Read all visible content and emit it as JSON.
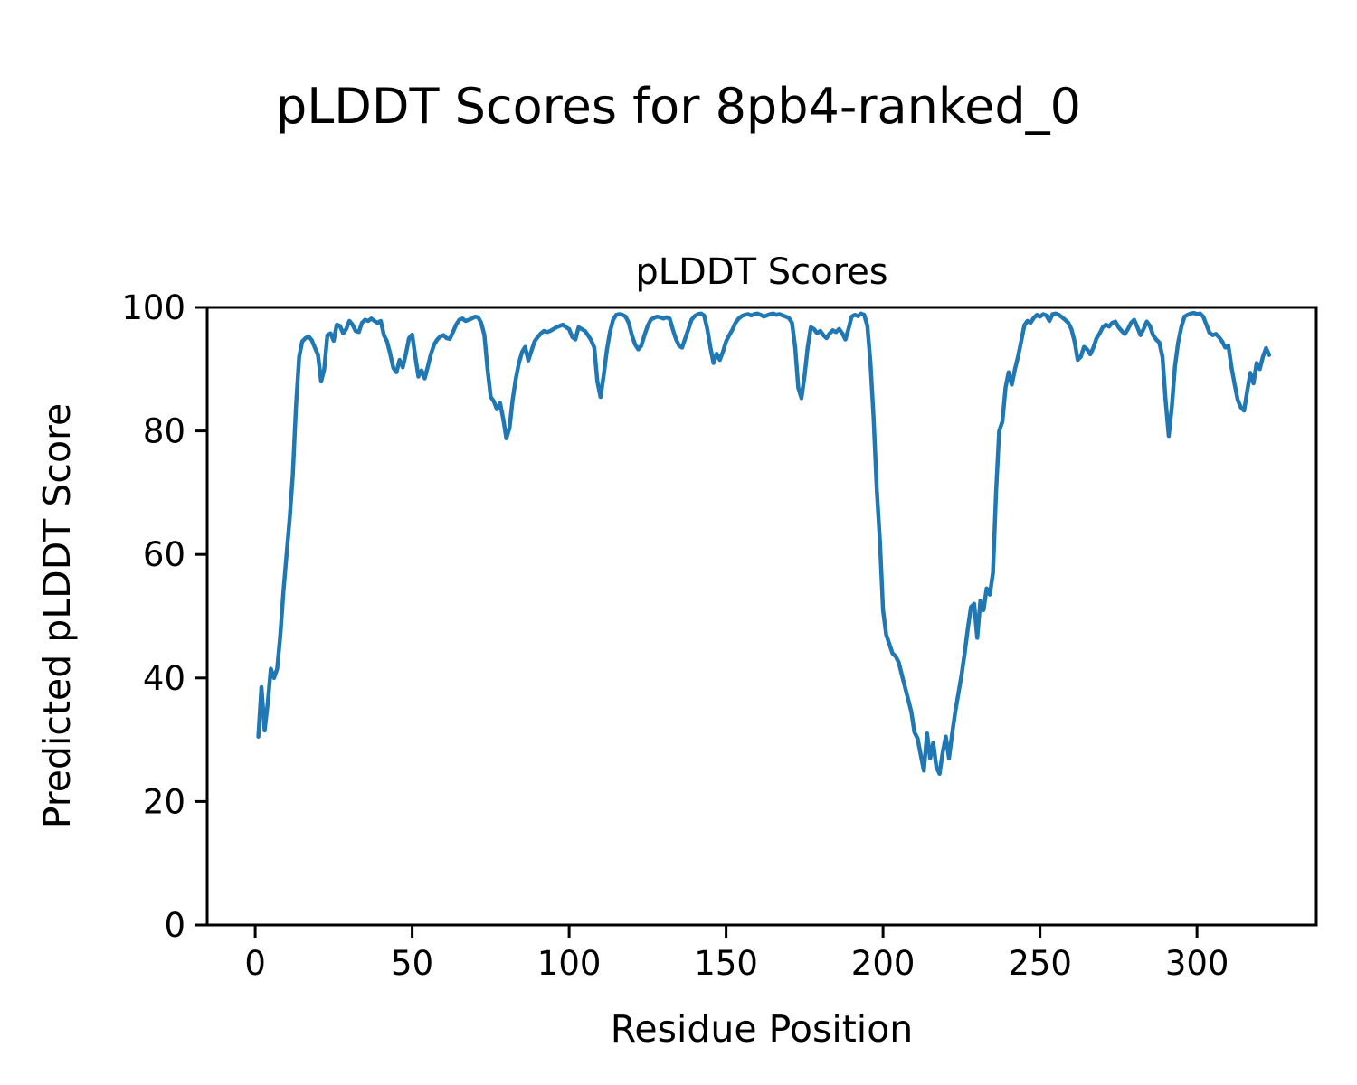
{
  "figure": {
    "suptitle": "pLDDT Scores for 8pb4-ranked_0",
    "background": "#ffffff"
  },
  "chart_data": {
    "type": "line",
    "title": "pLDDT Scores",
    "xlabel": "Residue Position",
    "ylabel": "Predicted pLDDT Score",
    "xlim": [
      -15.3,
      338
    ],
    "ylim": [
      0,
      100
    ],
    "xticks": [
      0,
      50,
      100,
      150,
      200,
      250,
      300
    ],
    "yticks": [
      0,
      20,
      40,
      60,
      80,
      100
    ],
    "grid": false,
    "legend": null,
    "line_color": "#1f77b4",
    "line_width": 4.5,
    "series": [
      {
        "name": "pLDDT",
        "points": [
          [
            1,
            30.5
          ],
          [
            2,
            38.5
          ],
          [
            3,
            31.5
          ],
          [
            4,
            36
          ],
          [
            5,
            41.5
          ],
          [
            6,
            40
          ],
          [
            7,
            41.5
          ],
          [
            8,
            47
          ],
          [
            9,
            54
          ],
          [
            10,
            60
          ],
          [
            11,
            66
          ],
          [
            12,
            73
          ],
          [
            13,
            84
          ],
          [
            14,
            92
          ],
          [
            15,
            94.5
          ],
          [
            16,
            95
          ],
          [
            17,
            95.3
          ],
          [
            18,
            94.7
          ],
          [
            19,
            93.5
          ],
          [
            20,
            92.3
          ],
          [
            21,
            88
          ],
          [
            22,
            90
          ],
          [
            23,
            95.5
          ],
          [
            24,
            95.8
          ],
          [
            25,
            94.6
          ],
          [
            26,
            97.2
          ],
          [
            27,
            97
          ],
          [
            28,
            95.8
          ],
          [
            29,
            96.5
          ],
          [
            30,
            97.8
          ],
          [
            31,
            97.2
          ],
          [
            32,
            96.2
          ],
          [
            33,
            96
          ],
          [
            34,
            97.5
          ],
          [
            35,
            98
          ],
          [
            36,
            97.8
          ],
          [
            37,
            98.2
          ],
          [
            38,
            97.8
          ],
          [
            39,
            97.5
          ],
          [
            40,
            97.8
          ],
          [
            41,
            95.5
          ],
          [
            42,
            94.5
          ],
          [
            43,
            92.5
          ],
          [
            44,
            90.2
          ],
          [
            45,
            89.5
          ],
          [
            46,
            91.5
          ],
          [
            47,
            90.3
          ],
          [
            48,
            92.5
          ],
          [
            49,
            95
          ],
          [
            50,
            95.6
          ],
          [
            51,
            92
          ],
          [
            52,
            88.8
          ],
          [
            53,
            89.8
          ],
          [
            54,
            88.5
          ],
          [
            55,
            90.5
          ],
          [
            56,
            92.5
          ],
          [
            57,
            94
          ],
          [
            58,
            94.8
          ],
          [
            59,
            95.3
          ],
          [
            60,
            95.5
          ],
          [
            61,
            95
          ],
          [
            62,
            94.9
          ],
          [
            63,
            96
          ],
          [
            64,
            97.2
          ],
          [
            65,
            98
          ],
          [
            66,
            98.2
          ],
          [
            67,
            97.8
          ],
          [
            68,
            98
          ],
          [
            69,
            98.2
          ],
          [
            70,
            98.5
          ],
          [
            71,
            98.4
          ],
          [
            72,
            97.5
          ],
          [
            73,
            95.5
          ],
          [
            74,
            90
          ],
          [
            75,
            85.5
          ],
          [
            76,
            84.8
          ],
          [
            77,
            83.5
          ],
          [
            78,
            84.5
          ],
          [
            79,
            82
          ],
          [
            80,
            78.8
          ],
          [
            81,
            80.5
          ],
          [
            82,
            85
          ],
          [
            83,
            88.4
          ],
          [
            84,
            91
          ],
          [
            85,
            92.8
          ],
          [
            86,
            93.6
          ],
          [
            87,
            91.4
          ],
          [
            88,
            93
          ],
          [
            89,
            94.5
          ],
          [
            90,
            95.2
          ],
          [
            91,
            95.8
          ],
          [
            92,
            96.2
          ],
          [
            93,
            96
          ],
          [
            94,
            96.2
          ],
          [
            95,
            96.5
          ],
          [
            96,
            96.8
          ],
          [
            97,
            97
          ],
          [
            98,
            97.2
          ],
          [
            99,
            96.8
          ],
          [
            100,
            96.5
          ],
          [
            101,
            95.2
          ],
          [
            102,
            94.8
          ],
          [
            103,
            96.8
          ],
          [
            104,
            96.5
          ],
          [
            105,
            96.2
          ],
          [
            106,
            95.5
          ],
          [
            107,
            94.7
          ],
          [
            108,
            93.5
          ],
          [
            109,
            88
          ],
          [
            110,
            85.5
          ],
          [
            111,
            89
          ],
          [
            112,
            93
          ],
          [
            113,
            96
          ],
          [
            114,
            98
          ],
          [
            115,
            98.8
          ],
          [
            116,
            98.9
          ],
          [
            117,
            98.8
          ],
          [
            118,
            98.5
          ],
          [
            119,
            97.5
          ],
          [
            120,
            95.5
          ],
          [
            121,
            94
          ],
          [
            122,
            93.2
          ],
          [
            123,
            93.8
          ],
          [
            124,
            95.5
          ],
          [
            125,
            97
          ],
          [
            126,
            98
          ],
          [
            127,
            98.3
          ],
          [
            128,
            98.5
          ],
          [
            129,
            98.4
          ],
          [
            130,
            98.2
          ],
          [
            131,
            98.4
          ],
          [
            132,
            98.2
          ],
          [
            133,
            96.5
          ],
          [
            134,
            94.9
          ],
          [
            135,
            93.8
          ],
          [
            136,
            93.5
          ],
          [
            137,
            95
          ],
          [
            138,
            96.5
          ],
          [
            139,
            98
          ],
          [
            140,
            98.6
          ],
          [
            141,
            98.9
          ],
          [
            142,
            99
          ],
          [
            143,
            98.7
          ],
          [
            144,
            96.5
          ],
          [
            145,
            93.5
          ],
          [
            146,
            91
          ],
          [
            147,
            92.5
          ],
          [
            148,
            91.5
          ],
          [
            149,
            92.8
          ],
          [
            150,
            94.5
          ],
          [
            151,
            95.5
          ],
          [
            152,
            96.4
          ],
          [
            153,
            97.5
          ],
          [
            154,
            98.2
          ],
          [
            155,
            98.6
          ],
          [
            156,
            98.8
          ],
          [
            157,
            98.9
          ],
          [
            158,
            98.7
          ],
          [
            159,
            98.9
          ],
          [
            160,
            99
          ],
          [
            161,
            98.8
          ],
          [
            162,
            98.5
          ],
          [
            163,
            98.7
          ],
          [
            164,
            98.9
          ],
          [
            165,
            99
          ],
          [
            166,
            98.8
          ],
          [
            167,
            98.9
          ],
          [
            168,
            98.7
          ],
          [
            169,
            98.5
          ],
          [
            170,
            98.3
          ],
          [
            171,
            97.5
          ],
          [
            172,
            93.5
          ],
          [
            173,
            87
          ],
          [
            174,
            85.3
          ],
          [
            175,
            89
          ],
          [
            176,
            93.5
          ],
          [
            177,
            96.8
          ],
          [
            178,
            96.5
          ],
          [
            179,
            95.8
          ],
          [
            180,
            96.2
          ],
          [
            181,
            95.5
          ],
          [
            182,
            95
          ],
          [
            183,
            95.8
          ],
          [
            184,
            96.3
          ],
          [
            185,
            96
          ],
          [
            186,
            96.5
          ],
          [
            187,
            95.8
          ],
          [
            188,
            94.8
          ],
          [
            189,
            96.5
          ],
          [
            190,
            98.5
          ],
          [
            191,
            98.8
          ],
          [
            192,
            98.6
          ],
          [
            193,
            99
          ],
          [
            194,
            98.8
          ],
          [
            195,
            97
          ],
          [
            196,
            91
          ],
          [
            197,
            82
          ],
          [
            198,
            70.5
          ],
          [
            199,
            62
          ],
          [
            200,
            51
          ],
          [
            201,
            47
          ],
          [
            202,
            45.5
          ],
          [
            203,
            44
          ],
          [
            204,
            43.5
          ],
          [
            205,
            42.5
          ],
          [
            206,
            40.5
          ],
          [
            207,
            38.5
          ],
          [
            208,
            36.5
          ],
          [
            209,
            34.5
          ],
          [
            210,
            31.2
          ],
          [
            211,
            30.2
          ],
          [
            212,
            27.5
          ],
          [
            213,
            25
          ],
          [
            214,
            31
          ],
          [
            215,
            27
          ],
          [
            216,
            29.5
          ],
          [
            217,
            25.5
          ],
          [
            218,
            24.5
          ],
          [
            219,
            28
          ],
          [
            220,
            30.5
          ],
          [
            221,
            27
          ],
          [
            222,
            31
          ],
          [
            223,
            34.5
          ],
          [
            224,
            37.5
          ],
          [
            225,
            40.5
          ],
          [
            226,
            44
          ],
          [
            227,
            48
          ],
          [
            228,
            51.5
          ],
          [
            229,
            52
          ],
          [
            230,
            46.5
          ],
          [
            231,
            52.5
          ],
          [
            232,
            51
          ],
          [
            233,
            54.5
          ],
          [
            234,
            53.5
          ],
          [
            235,
            57
          ],
          [
            236,
            70
          ],
          [
            237,
            80
          ],
          [
            238,
            81.5
          ],
          [
            239,
            87
          ],
          [
            240,
            89.5
          ],
          [
            241,
            87.5
          ],
          [
            242,
            90
          ],
          [
            243,
            92
          ],
          [
            244,
            94.5
          ],
          [
            245,
            97.1
          ],
          [
            246,
            97.8
          ],
          [
            247,
            97.5
          ],
          [
            248,
            98.3
          ],
          [
            249,
            98.8
          ],
          [
            250,
            98.5
          ],
          [
            251,
            98.9
          ],
          [
            252,
            98.7
          ],
          [
            253,
            97.8
          ],
          [
            254,
            98.9
          ],
          [
            255,
            99
          ],
          [
            256,
            98.8
          ],
          [
            257,
            98.4
          ],
          [
            258,
            98
          ],
          [
            259,
            97.5
          ],
          [
            260,
            96.5
          ],
          [
            261,
            94.5
          ],
          [
            262,
            91.5
          ],
          [
            263,
            92
          ],
          [
            264,
            93.6
          ],
          [
            265,
            93.2
          ],
          [
            266,
            92.4
          ],
          [
            267,
            93.5
          ],
          [
            268,
            95
          ],
          [
            269,
            95.8
          ],
          [
            270,
            96.8
          ],
          [
            271,
            97.2
          ],
          [
            272,
            96.9
          ],
          [
            273,
            97.5
          ],
          [
            274,
            97.7
          ],
          [
            275,
            96.8
          ],
          [
            276,
            96.2
          ],
          [
            277,
            95.7
          ],
          [
            278,
            96.5
          ],
          [
            279,
            97.5
          ],
          [
            280,
            98
          ],
          [
            281,
            96.8
          ],
          [
            282,
            95.5
          ],
          [
            283,
            96.5
          ],
          [
            284,
            97.7
          ],
          [
            285,
            97
          ],
          [
            286,
            95.5
          ],
          [
            287,
            94.8
          ],
          [
            288,
            94.3
          ],
          [
            289,
            92
          ],
          [
            290,
            85
          ],
          [
            291,
            79.2
          ],
          [
            292,
            84
          ],
          [
            293,
            90.5
          ],
          [
            294,
            94.3
          ],
          [
            295,
            96.8
          ],
          [
            296,
            98.5
          ],
          [
            297,
            98.8
          ],
          [
            298,
            99
          ],
          [
            299,
            99.1
          ],
          [
            300,
            98.9
          ],
          [
            301,
            99
          ],
          [
            302,
            98.5
          ],
          [
            303,
            97.2
          ],
          [
            304,
            95.9
          ],
          [
            305,
            95.5
          ],
          [
            306,
            95.7
          ],
          [
            307,
            95.2
          ],
          [
            308,
            94.5
          ],
          [
            309,
            93.5
          ],
          [
            310,
            93.8
          ],
          [
            311,
            90.3
          ],
          [
            312,
            87.5
          ],
          [
            313,
            85
          ],
          [
            314,
            83.8
          ],
          [
            315,
            83.3
          ],
          [
            316,
            86.5
          ],
          [
            317,
            89.4
          ],
          [
            318,
            87.7
          ],
          [
            319,
            91
          ],
          [
            320,
            90
          ],
          [
            321,
            92
          ],
          [
            322,
            93.4
          ],
          [
            323,
            92.3
          ]
        ]
      }
    ]
  }
}
